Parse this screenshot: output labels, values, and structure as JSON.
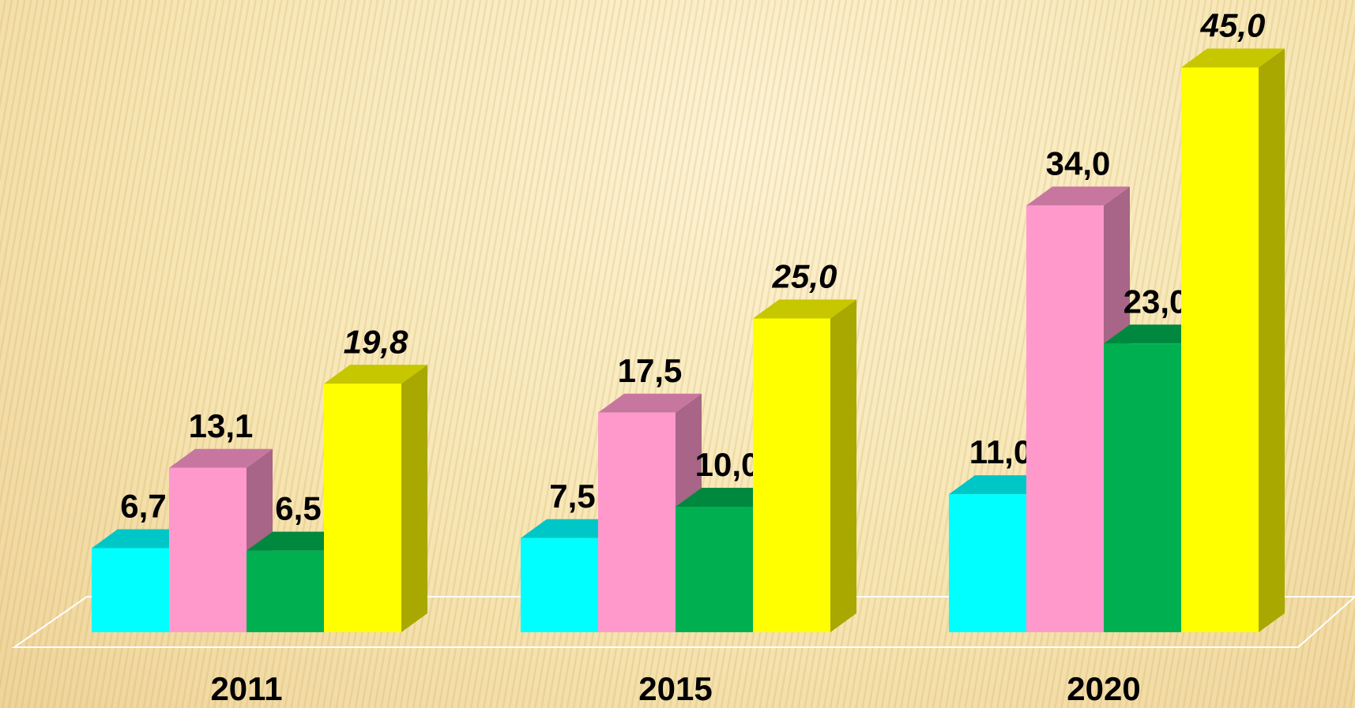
{
  "chart_data": {
    "type": "bar",
    "categories": [
      "2011",
      "2015",
      "2020"
    ],
    "series": [
      {
        "color": "#00ffff",
        "values": [
          6.7,
          7.5,
          11.0
        ],
        "value_labels": [
          "6,7",
          "7,5",
          "11,0"
        ]
      },
      {
        "color": "#ff99cc",
        "values": [
          13.1,
          17.5,
          34.0
        ],
        "value_labels": [
          "13,1",
          "17,5",
          "34,0"
        ]
      },
      {
        "color": "#00b050",
        "values": [
          6.5,
          10.0,
          23.0
        ],
        "value_labels": [
          "6,5",
          "10,0",
          "23,0"
        ]
      },
      {
        "color": "#ffff00",
        "values": [
          19.8,
          25.0,
          45.0
        ],
        "value_labels": [
          "19,8",
          "25,0",
          "45,0"
        ],
        "label_font_style": "italic"
      }
    ]
  }
}
